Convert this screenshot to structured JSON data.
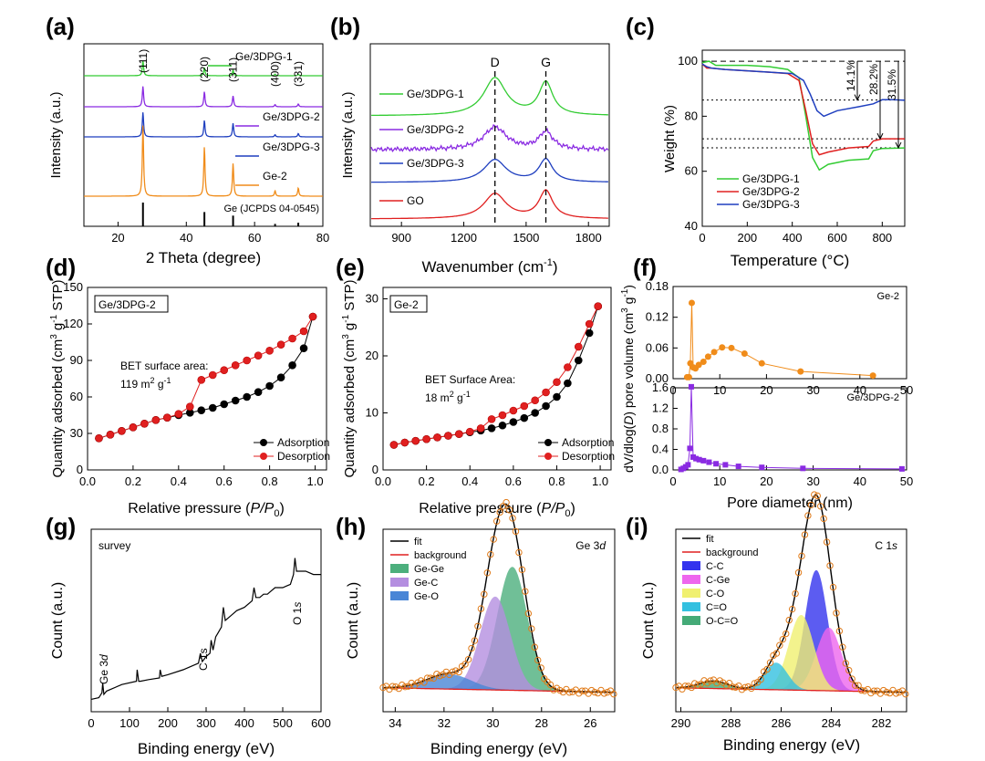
{
  "chart_data": [
    {
      "id": "a",
      "panel_label": "(a)",
      "type": "line",
      "xlabel": "2 Theta (degree)",
      "ylabel": "Intensity (a.u.)",
      "xlim": [
        10,
        80
      ],
      "xticks": [
        20,
        40,
        60,
        80
      ],
      "peak_labels": [
        {
          "x": 27.3,
          "text": "(111)"
        },
        {
          "x": 45.3,
          "text": "(220)"
        },
        {
          "x": 53.7,
          "text": "(311)"
        },
        {
          "x": 66.0,
          "text": "(400)"
        },
        {
          "x": 72.8,
          "text": "(331)"
        }
      ],
      "series": [
        {
          "name": "Ge/3DPG-1",
          "color": "#33cc33",
          "offset": 4,
          "peaks": [
            [
              27.3,
              0.55
            ],
            [
              45.3,
              0.3
            ],
            [
              53.7,
              0.2
            ],
            [
              66.0,
              0.06
            ],
            [
              72.8,
              0.06
            ]
          ]
        },
        {
          "name": "Ge/3DPG-2",
          "color": "#8a2be2",
          "offset": 3,
          "peaks": [
            [
              27.3,
              0.75
            ],
            [
              45.3,
              0.55
            ],
            [
              53.7,
              0.4
            ],
            [
              66.0,
              0.08
            ],
            [
              72.8,
              0.1
            ]
          ]
        },
        {
          "name": "Ge/3DPG-3",
          "color": "#1f3fbf",
          "offset": 2,
          "peaks": [
            [
              27.3,
              0.9
            ],
            [
              45.3,
              0.6
            ],
            [
              53.7,
              0.5
            ],
            [
              66.0,
              0.08
            ],
            [
              72.8,
              0.12
            ]
          ]
        },
        {
          "name": "Ge-2",
          "color": "#f08c1a",
          "offset": 1,
          "peaks": [
            [
              27.3,
              1.3
            ],
            [
              45.3,
              0.9
            ],
            [
              53.7,
              0.6
            ],
            [
              66.0,
              0.1
            ],
            [
              72.8,
              0.15
            ]
          ]
        }
      ],
      "reference": {
        "name": "Ge (JCPDS 04-0545)",
        "sticks": [
          [
            27.3,
            1.0
          ],
          [
            45.3,
            0.6
          ],
          [
            53.7,
            0.45
          ],
          [
            66.0,
            0.1
          ],
          [
            72.8,
            0.15
          ]
        ]
      }
    },
    {
      "id": "b",
      "panel_label": "(b)",
      "type": "line",
      "xlabel": "Wavenumber (cm",
      "xlabel_sup": "-1",
      "xlabel_end": ")",
      "ylabel": "Intensity (a.u.)",
      "xlim": [
        750,
        1900
      ],
      "xticks": [
        900,
        1200,
        1500,
        1800
      ],
      "band_labels": [
        {
          "x": 1350,
          "text": "D"
        },
        {
          "x": 1595,
          "text": "G"
        }
      ],
      "series": [
        {
          "name": "Ge/3DPG-1",
          "color": "#33cc33",
          "offset": 4,
          "D": 0.75,
          "G": 0.65
        },
        {
          "name": "Ge/3DPG-2",
          "color": "#8a2be2",
          "offset": 3,
          "D": 0.45,
          "G": 0.35
        },
        {
          "name": "Ge/3DPG-3",
          "color": "#1f3fbf",
          "offset": 2,
          "D": 0.45,
          "G": 0.45
        },
        {
          "name": "GO",
          "color": "#e02020",
          "offset": 1,
          "D": 0.5,
          "G": 0.55
        }
      ]
    },
    {
      "id": "c",
      "panel_label": "(c)",
      "type": "line",
      "xlabel": "Temperature (°C)",
      "ylabel": "Weight (%)",
      "xlim": [
        0,
        900
      ],
      "ylim": [
        40,
        104
      ],
      "xticks": [
        0,
        200,
        400,
        600,
        800
      ],
      "yticks": [
        40,
        60,
        80,
        100
      ],
      "annotations": [
        "14.1%",
        "28.2%",
        "31.5%"
      ],
      "series": [
        {
          "name": "Ge/3DPG-1",
          "color": "#33cc33",
          "x": [
            0,
            30,
            60,
            100,
            200,
            300,
            380,
            430,
            460,
            490,
            520,
            560,
            650,
            740,
            760,
            800,
            900
          ],
          "y": [
            99.5,
            100,
            98.5,
            98.5,
            98.5,
            98,
            97,
            94,
            80,
            65,
            60.5,
            62.5,
            64,
            64.5,
            67.5,
            68.3,
            68.5
          ]
        },
        {
          "name": "Ge/3DPG-2",
          "color": "#e02020",
          "x": [
            0,
            20,
            40,
            100,
            200,
            300,
            380,
            430,
            460,
            490,
            520,
            560,
            650,
            740,
            760,
            800,
            900
          ],
          "y": [
            99,
            97.5,
            97.5,
            97,
            96.5,
            96,
            95.5,
            93,
            82,
            70,
            66,
            67,
            68.5,
            69,
            71,
            71.8,
            71.8
          ]
        },
        {
          "name": "Ge/3DPG-3",
          "color": "#1f3fbf",
          "x": [
            0,
            20,
            40,
            100,
            200,
            300,
            400,
            450,
            480,
            510,
            540,
            600,
            700,
            760,
            800,
            850,
            900
          ],
          "y": [
            99,
            98,
            97.5,
            97,
            96.5,
            96,
            95.5,
            93,
            88,
            82,
            80,
            82,
            83.5,
            84.5,
            86,
            86,
            85.8
          ]
        }
      ]
    },
    {
      "id": "d",
      "panel_label": "(d)",
      "type": "scatter",
      "box_label": "Ge/3DPG-2",
      "annotation_line1": "BET surface area:",
      "annotation_line2": "119 m",
      "annotation_sup1": "2",
      "annotation_mid": " g",
      "annotation_sup2": "-1",
      "xlabel": "Relative pressure (",
      "xlabel_p": "P/P",
      "xlabel_sub": "0",
      "xlabel_end": ")",
      "ylabel": "Quantity adsorbed (cm",
      "ylabel_sup1": "3",
      "ylabel_mid": " g",
      "ylabel_sup2": "-1",
      "ylabel_end": " STP)",
      "xlim": [
        0,
        1.05
      ],
      "ylim": [
        0,
        150
      ],
      "xticks": [
        0.0,
        0.2,
        0.4,
        0.6,
        0.8,
        1.0
      ],
      "xtick_labels": [
        "0.0",
        "0.2",
        "0.4",
        "0.6",
        "0.8",
        "1.0"
      ],
      "yticks": [
        0,
        30,
        60,
        90,
        120,
        150
      ],
      "series": [
        {
          "name": "Adsorption",
          "color": "#000000",
          "x": [
            0.05,
            0.1,
            0.15,
            0.2,
            0.25,
            0.3,
            0.35,
            0.4,
            0.45,
            0.5,
            0.55,
            0.6,
            0.65,
            0.7,
            0.75,
            0.8,
            0.85,
            0.9,
            0.95,
            0.99
          ],
          "y": [
            26,
            29,
            32,
            35,
            38,
            41,
            43,
            45,
            47,
            49,
            51,
            54,
            57,
            60,
            64,
            69,
            76,
            86,
            100,
            126
          ]
        },
        {
          "name": "Desorption",
          "color": "#e02020",
          "x": [
            0.05,
            0.1,
            0.15,
            0.2,
            0.25,
            0.3,
            0.35,
            0.4,
            0.45,
            0.5,
            0.55,
            0.6,
            0.65,
            0.7,
            0.75,
            0.8,
            0.85,
            0.9,
            0.95,
            0.99
          ],
          "y": [
            26,
            29,
            32,
            35,
            38,
            41,
            43,
            46,
            52,
            74,
            78,
            82,
            86,
            90,
            94,
            98,
            103,
            108,
            114,
            126
          ]
        }
      ]
    },
    {
      "id": "e",
      "panel_label": "(e)",
      "type": "scatter",
      "box_label": "Ge-2",
      "annotation_line1": "BET Surface Area:",
      "annotation_line2": "18 m",
      "annotation_sup1": "2",
      "annotation_mid": " g",
      "annotation_sup2": "-1",
      "xlabel": "Relative pressure (",
      "xlabel_p": "P/P",
      "xlabel_sub": "0",
      "xlabel_end": ")",
      "ylabel": "Quantity adsorbed (cm",
      "ylabel_sup1": "3",
      "ylabel_mid": " g",
      "ylabel_sup2": "-1",
      "ylabel_end": " STP)",
      "xlim": [
        0,
        1.05
      ],
      "ylim": [
        0,
        32
      ],
      "xticks": [
        0.0,
        0.2,
        0.4,
        0.6,
        0.8,
        1.0
      ],
      "xtick_labels": [
        "0.0",
        "0.2",
        "0.4",
        "0.6",
        "0.8",
        "1.0"
      ],
      "yticks": [
        0,
        10,
        20,
        30
      ],
      "series": [
        {
          "name": "Adsorption",
          "color": "#000000",
          "x": [
            0.05,
            0.1,
            0.15,
            0.2,
            0.25,
            0.3,
            0.35,
            0.4,
            0.45,
            0.5,
            0.55,
            0.6,
            0.65,
            0.7,
            0.75,
            0.8,
            0.85,
            0.9,
            0.95,
            0.99
          ],
          "y": [
            4.4,
            4.8,
            5.1,
            5.4,
            5.7,
            6.0,
            6.3,
            6.6,
            6.9,
            7.3,
            7.8,
            8.4,
            9.1,
            10.0,
            11.2,
            12.8,
            15.2,
            19.2,
            24.0,
            28.7
          ]
        },
        {
          "name": "Desorption",
          "color": "#e02020",
          "x": [
            0.05,
            0.1,
            0.15,
            0.2,
            0.25,
            0.3,
            0.35,
            0.4,
            0.45,
            0.5,
            0.55,
            0.6,
            0.65,
            0.7,
            0.75,
            0.8,
            0.85,
            0.9,
            0.95,
            0.99
          ],
          "y": [
            4.4,
            4.8,
            5.1,
            5.4,
            5.7,
            6.0,
            6.3,
            6.7,
            7.3,
            8.9,
            9.6,
            10.4,
            11.2,
            12.2,
            13.6,
            15.4,
            18.0,
            21.6,
            25.6,
            28.7
          ]
        }
      ]
    },
    {
      "id": "f",
      "panel_label": "(f)",
      "type": "scatter",
      "ylabel": "dV/dlog(",
      "ylabel_d": "D",
      "ylabel_mid": ") pore volume (cm",
      "ylabel_sup1": "3",
      "ylabel_mid2": " g",
      "ylabel_sup2": "-1",
      "ylabel_end": ")",
      "xlabel": "Pore diameter (nm)",
      "subplots": [
        {
          "name": "Ge-2",
          "color": "#f08c1a",
          "marker": "circle",
          "xlim": [
            0,
            50
          ],
          "ylim": [
            0,
            0.18
          ],
          "xticks": [
            0,
            10,
            20,
            30,
            40,
            50
          ],
          "yticks": [
            0.0,
            0.06,
            0.12,
            0.18
          ],
          "ytick_labels": [
            "0.00",
            "0.06",
            "0.12",
            "0.18"
          ],
          "x": [
            3.0,
            3.4,
            3.7,
            4.0,
            4.3,
            4.8,
            5.5,
            6.5,
            7.5,
            8.8,
            10.5,
            12.5,
            15.3,
            19.0,
            27.3,
            42.8
          ],
          "y": [
            0.003,
            0.003,
            0.03,
            0.148,
            0.022,
            0.02,
            0.027,
            0.033,
            0.043,
            0.052,
            0.061,
            0.06,
            0.049,
            0.03,
            0.014,
            0.006
          ]
        },
        {
          "name": "Ge/3DPG-2",
          "color": "#8a2be2",
          "marker": "square",
          "xlim": [
            0,
            50
          ],
          "ylim": [
            0,
            1.6
          ],
          "xticks": [
            0,
            10,
            20,
            30,
            40,
            50
          ],
          "yticks": [
            0.0,
            0.4,
            0.8,
            1.2,
            1.6
          ],
          "ytick_labels": [
            "0.0",
            "0.4",
            "0.8",
            "1.2",
            "1.6"
          ],
          "x": [
            1.7,
            2.2,
            2.7,
            3.2,
            3.6,
            3.9,
            4.3,
            4.9,
            5.6,
            6.5,
            7.7,
            9.2,
            11.2,
            14.0,
            19.0,
            27.8,
            49.0
          ],
          "y": [
            0.01,
            0.03,
            0.06,
            0.1,
            0.42,
            1.62,
            0.25,
            0.22,
            0.2,
            0.18,
            0.15,
            0.12,
            0.1,
            0.07,
            0.05,
            0.03,
            0.02
          ]
        }
      ]
    },
    {
      "id": "g",
      "panel_label": "(g)",
      "type": "line",
      "annotation": "survey",
      "xlabel": "Binding energy (eV)",
      "ylabel": "Count (a.u.)",
      "xlim": [
        0,
        600
      ],
      "xticks": [
        0,
        100,
        200,
        300,
        400,
        500,
        600
      ],
      "peak_labels": [
        {
          "x": 30,
          "text": "Ge 3",
          "italic": "d"
        },
        {
          "x": 285,
          "text": "C 1s"
        },
        {
          "x": 532,
          "text": "O 1",
          "italic": "s"
        }
      ],
      "series": [
        {
          "name": "survey",
          "color": "#000000",
          "x": [
            0,
            20,
            28,
            30,
            33,
            40,
            80,
            118,
            120,
            124,
            128,
            150,
            178,
            180,
            184,
            200,
            240,
            280,
            285,
            290,
            300,
            310,
            313,
            318,
            325,
            330,
            340,
            345,
            350,
            360,
            380,
            400,
            420,
            425,
            430,
            440,
            450,
            460,
            470,
            480,
            500,
            510,
            520,
            528,
            532,
            536,
            545,
            560,
            580,
            600
          ],
          "y": [
            0.02,
            0.03,
            0.06,
            0.12,
            0.05,
            0.07,
            0.11,
            0.13,
            0.2,
            0.13,
            0.13,
            0.14,
            0.15,
            0.2,
            0.16,
            0.17,
            0.2,
            0.24,
            0.3,
            0.25,
            0.28,
            0.3,
            0.38,
            0.32,
            0.4,
            0.42,
            0.46,
            0.58,
            0.5,
            0.52,
            0.56,
            0.58,
            0.62,
            0.7,
            0.64,
            0.64,
            0.66,
            0.66,
            0.68,
            0.7,
            0.7,
            0.71,
            0.72,
            0.78,
            0.88,
            0.8,
            0.8,
            0.8,
            0.78,
            0.78
          ]
        }
      ]
    },
    {
      "id": "h",
      "panel_label": "(h)",
      "type": "line",
      "corner_label": "Ge 3",
      "corner_label_italic": "d",
      "xlabel": "Binding energy (eV)",
      "ylabel": "Count (a.u.)",
      "xlim": [
        34.5,
        25
      ],
      "xticks": [
        34,
        32,
        30,
        28,
        26
      ],
      "legend": [
        "fit",
        "background",
        "Ge-Ge",
        "Ge-C",
        "Ge-O"
      ],
      "components": [
        {
          "name": "Ge-Ge",
          "color": "#4caf7d",
          "center": 29.2,
          "amp": 0.82,
          "width": 0.62
        },
        {
          "name": "Ge-C",
          "color": "#b48ee0",
          "center": 29.9,
          "amp": 0.62,
          "width": 0.62
        },
        {
          "name": "Ge-O",
          "color": "#4a86d6",
          "center": 31.8,
          "amp": 0.1,
          "width": 0.9
        }
      ],
      "fit_color": "#000000",
      "background_color": "#e02020",
      "data_color": "#e07b1a"
    },
    {
      "id": "i",
      "panel_label": "(i)",
      "type": "line",
      "corner_label": "C 1",
      "corner_label_italic": "s",
      "xlabel": "Binding energy (eV)",
      "ylabel": "Count (a.u.)",
      "xlim": [
        290.2,
        281
      ],
      "xticks": [
        290,
        288,
        286,
        284,
        282
      ],
      "legend": [
        "fit",
        "background",
        "C-C",
        "C-Ge",
        "C-O",
        "C=O",
        "O-C=O"
      ],
      "components": [
        {
          "name": "C-C",
          "color": "#3333ee",
          "center": 284.6,
          "amp": 0.8,
          "width": 0.45
        },
        {
          "name": "C-Ge",
          "color": "#ee66ee",
          "center": 284.1,
          "amp": 0.42,
          "width": 0.5
        },
        {
          "name": "C-O",
          "color": "#f0f070",
          "center": 285.2,
          "amp": 0.5,
          "width": 0.5
        },
        {
          "name": "C=O",
          "color": "#33c0e0",
          "center": 286.2,
          "amp": 0.18,
          "width": 0.45
        },
        {
          "name": "O-C=O",
          "color": "#44aa77",
          "center": 288.7,
          "amp": 0.05,
          "width": 0.55
        }
      ],
      "fit_color": "#000000",
      "background_color": "#e02020",
      "data_color": "#e07b1a"
    }
  ]
}
